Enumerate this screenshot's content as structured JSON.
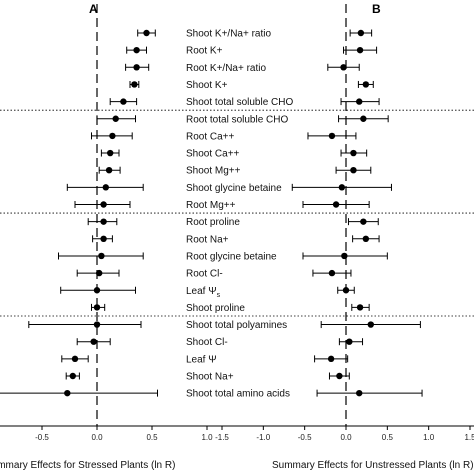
{
  "chart_data": [
    {
      "type": "forest",
      "panel_label": "A",
      "xlabel": "Summary Effects for Stressed Plants (ln R)",
      "xlim": [
        -1.0,
        1.0
      ],
      "xticks": [
        "-0.5",
        "0.0",
        "0.5",
        "1.0"
      ],
      "reference_line": 0,
      "group_separators_after_rows": [
        4,
        10,
        16
      ],
      "rows": [
        {
          "label": "Shoot K+/Na+ ratio",
          "mean": 0.45,
          "low": 0.37,
          "high": 0.53
        },
        {
          "label": "Root K+",
          "mean": 0.36,
          "low": 0.27,
          "high": 0.45
        },
        {
          "label": "Root K+/Na+ ratio",
          "mean": 0.36,
          "low": 0.26,
          "high": 0.47
        },
        {
          "label": "Shoot K+",
          "mean": 0.34,
          "low": 0.3,
          "high": 0.38
        },
        {
          "label": "Shoot total soluble CHO",
          "mean": 0.24,
          "low": 0.12,
          "high": 0.36
        },
        {
          "label": "Root total soluble CHO",
          "mean": 0.17,
          "low": 0.0,
          "high": 0.35
        },
        {
          "label": "Root Ca++",
          "mean": 0.14,
          "low": -0.05,
          "high": 0.32
        },
        {
          "label": "Shoot Ca++",
          "mean": 0.12,
          "low": 0.04,
          "high": 0.2
        },
        {
          "label": "Shoot Mg++",
          "mean": 0.11,
          "low": 0.02,
          "high": 0.21
        },
        {
          "label": "Shoot glycine betaine",
          "mean": 0.08,
          "low": -0.27,
          "high": 0.42
        },
        {
          "label": "Root Mg++",
          "mean": 0.06,
          "low": -0.2,
          "high": 0.3
        },
        {
          "label": "Root proline",
          "mean": 0.06,
          "low": -0.08,
          "high": 0.18
        },
        {
          "label": "Root Na+",
          "mean": 0.06,
          "low": -0.04,
          "high": 0.14
        },
        {
          "label": "Root glycine betaine",
          "mean": 0.04,
          "low": -0.35,
          "high": 0.42
        },
        {
          "label": "Root Cl-",
          "mean": 0.02,
          "low": -0.18,
          "high": 0.2
        },
        {
          "label": "Leaf Ψs",
          "mean": 0.0,
          "low": -0.33,
          "high": 0.35
        },
        {
          "label": "Shoot proline",
          "mean": 0.0,
          "low": -0.05,
          "high": 0.07
        },
        {
          "label": "Shoot total polyamines",
          "mean": 0.0,
          "low": -0.62,
          "high": 0.4
        },
        {
          "label": "Shoot Cl-",
          "mean": -0.03,
          "low": -0.18,
          "high": 0.12
        },
        {
          "label": "Leaf Ψ",
          "mean": -0.2,
          "low": -0.32,
          "high": -0.08
        },
        {
          "label": "Shoot Na+",
          "mean": -0.22,
          "low": -0.28,
          "high": -0.16
        },
        {
          "label": "Shoot total amino acids",
          "mean": -0.27,
          "low": -1.0,
          "high": 0.55
        }
      ]
    },
    {
      "type": "forest",
      "panel_label": "B",
      "xlabel": "Summary Effects for Unstressed Plants (ln R)",
      "xlim": [
        -1.5,
        1.5
      ],
      "xticks": [
        "-1.5",
        "-1.0",
        "-0.5",
        "0.0",
        "0.5",
        "1.0",
        "1.5"
      ],
      "reference_line": 0,
      "rows": [
        {
          "mean": 0.18,
          "low": 0.05,
          "high": 0.31
        },
        {
          "mean": 0.17,
          "low": -0.03,
          "high": 0.37
        },
        {
          "mean": -0.03,
          "low": -0.22,
          "high": 0.16
        },
        {
          "mean": 0.24,
          "low": 0.15,
          "high": 0.33
        },
        {
          "mean": 0.16,
          "low": -0.06,
          "high": 0.4
        },
        {
          "mean": 0.21,
          "low": -0.09,
          "high": 0.51
        },
        {
          "mean": -0.17,
          "low": -0.46,
          "high": 0.12
        },
        {
          "mean": 0.09,
          "low": -0.06,
          "high": 0.25
        },
        {
          "mean": 0.09,
          "low": -0.12,
          "high": 0.3
        },
        {
          "mean": -0.05,
          "low": -0.65,
          "high": 0.55
        },
        {
          "mean": -0.12,
          "low": -0.52,
          "high": 0.28
        },
        {
          "mean": 0.21,
          "low": 0.03,
          "high": 0.39
        },
        {
          "mean": 0.24,
          "low": 0.08,
          "high": 0.4
        },
        {
          "mean": -0.02,
          "low": -0.52,
          "high": 0.5
        },
        {
          "mean": -0.17,
          "low": -0.4,
          "high": 0.06
        },
        {
          "mean": 0.0,
          "low": -0.1,
          "high": 0.1
        },
        {
          "mean": 0.17,
          "low": 0.07,
          "high": 0.28
        },
        {
          "mean": 0.3,
          "low": -0.3,
          "high": 0.9
        },
        {
          "mean": 0.04,
          "low": -0.08,
          "high": 0.2
        },
        {
          "mean": -0.18,
          "low": -0.38,
          "high": 0.02
        },
        {
          "mean": -0.08,
          "low": -0.2,
          "high": 0.04
        },
        {
          "mean": 0.16,
          "low": -0.35,
          "high": 0.92
        }
      ]
    }
  ]
}
